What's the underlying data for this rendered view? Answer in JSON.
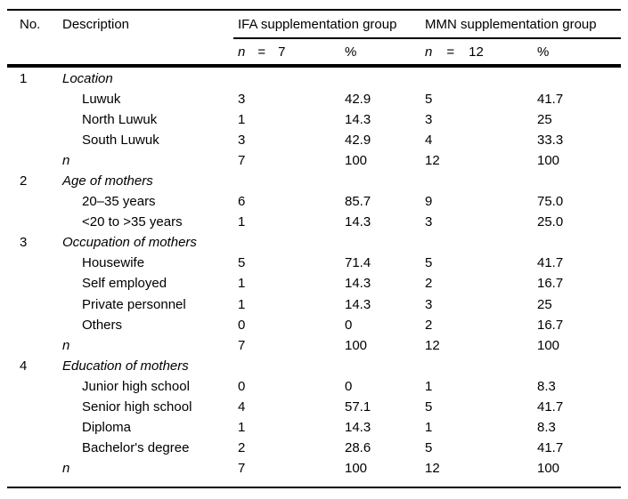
{
  "table": {
    "header": {
      "no": "No.",
      "description": "Description",
      "ifa_group": "IFA supplementation group",
      "mmn_group": "MMN supplementation group",
      "n_label": "n",
      "eq": "=",
      "ifa_n": "7",
      "mmn_n": "12",
      "pct": "%"
    },
    "rows": [
      {
        "no": "1",
        "label": "Location",
        "n1": "",
        "p1": "",
        "n2": "",
        "p2": ""
      },
      {
        "no": "",
        "label": "Luwuk",
        "n1": "3",
        "p1": "42.9",
        "n2": "5",
        "p2": "41.7"
      },
      {
        "no": "",
        "label": "North Luwuk",
        "n1": "1",
        "p1": "14.3",
        "n2": "3",
        "p2": "25"
      },
      {
        "no": "",
        "label": "South Luwuk",
        "n1": "3",
        "p1": "42.9",
        "n2": "4",
        "p2": "33.3"
      },
      {
        "no": "",
        "label": "n",
        "n1": "7",
        "p1": "100",
        "n2": "12",
        "p2": "100"
      },
      {
        "no": "2",
        "label": "Age of mothers",
        "n1": "",
        "p1": "",
        "n2": "",
        "p2": ""
      },
      {
        "no": "",
        "label": "20–35 years",
        "n1": "6",
        "p1": "85.7",
        "n2": "9",
        "p2": "75.0"
      },
      {
        "no": "",
        "label": "<20 to >35 years",
        "n1": "1",
        "p1": "14.3",
        "n2": "3",
        "p2": "25.0"
      },
      {
        "no": "3",
        "label": "Occupation of mothers",
        "n1": "",
        "p1": "",
        "n2": "",
        "p2": ""
      },
      {
        "no": "",
        "label": "Housewife",
        "n1": "5",
        "p1": "71.4",
        "n2": "5",
        "p2": "41.7"
      },
      {
        "no": "",
        "label": "Self employed",
        "n1": "1",
        "p1": "14.3",
        "n2": "2",
        "p2": "16.7"
      },
      {
        "no": "",
        "label": "Private personnel",
        "n1": "1",
        "p1": "14.3",
        "n2": "3",
        "p2": "25"
      },
      {
        "no": "",
        "label": "Others",
        "n1": "0",
        "p1": "0",
        "n2": "2",
        "p2": "16.7"
      },
      {
        "no": "",
        "label": "n",
        "n1": "7",
        "p1": "100",
        "n2": "12",
        "p2": "100"
      },
      {
        "no": "4",
        "label": "Education of mothers",
        "n1": "",
        "p1": "",
        "n2": "",
        "p2": ""
      },
      {
        "no": "",
        "label": "Junior high school",
        "n1": "0",
        "p1": "0",
        "n2": "1",
        "p2": "8.3"
      },
      {
        "no": "",
        "label": "Senior high school",
        "n1": "4",
        "p1": "57.1",
        "n2": "5",
        "p2": "41.7"
      },
      {
        "no": "",
        "label": "Diploma",
        "n1": "1",
        "p1": "14.3",
        "n2": "1",
        "p2": "8.3"
      },
      {
        "no": "",
        "label": "Bachelor's degree",
        "n1": "2",
        "p1": "28.6",
        "n2": "5",
        "p2": "41.7"
      },
      {
        "no": "",
        "label": "n",
        "n1": "7",
        "p1": "100",
        "n2": "12",
        "p2": "100"
      }
    ]
  }
}
